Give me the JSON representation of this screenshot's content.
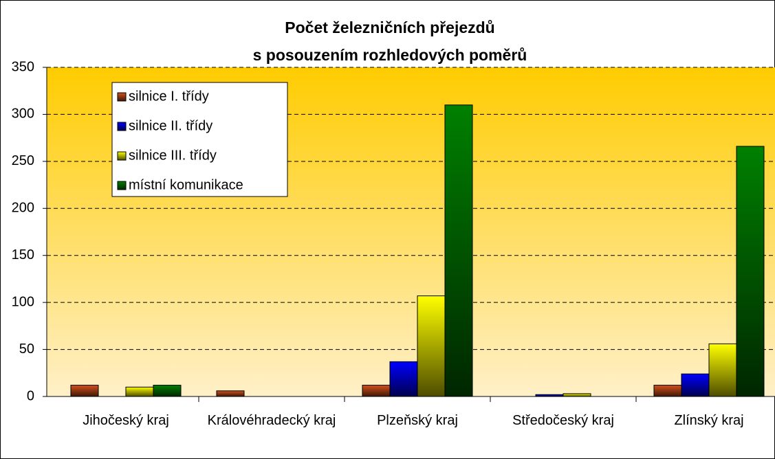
{
  "chart_data": {
    "type": "bar",
    "title": [
      "Počet železničních přejezdů",
      "s posouzením rozhledových poměrů"
    ],
    "categories": [
      "Jihočeský kraj",
      "Královéhradecký kraj",
      "Plzeňský kraj",
      "Středočeský kraj",
      "Zlínský kraj"
    ],
    "series": [
      {
        "name": "silnice I. třídy",
        "color": "#d4501a",
        "values": [
          12,
          6,
          12,
          0,
          12
        ]
      },
      {
        "name": "silnice II. třídy",
        "color": "#0000ff",
        "values": [
          0,
          0,
          37,
          2,
          24
        ]
      },
      {
        "name": "silnice III. třídy",
        "color": "#ffff00",
        "values": [
          10,
          0,
          107,
          3,
          56
        ]
      },
      {
        "name": "místní komunikace",
        "color": "#008000",
        "values": [
          12,
          0,
          310,
          0,
          266
        ]
      }
    ],
    "ylim": [
      0,
      350
    ],
    "yticks": [
      0,
      50,
      100,
      150,
      200,
      250,
      300,
      350
    ],
    "grid": true,
    "legend": "top-left"
  }
}
